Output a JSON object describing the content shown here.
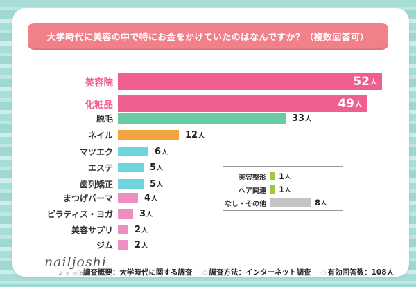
{
  "title": "大学時代に美容の中で特にお金をかけていたのはなんですか？（複数回答可）",
  "chart_data": {
    "type": "bar",
    "orientation": "horizontal",
    "unit": "人",
    "title": "大学時代に美容の中で特にお金をかけていたのはなんですか？（複数回答可）",
    "categories": [
      "美容院",
      "化粧品",
      "脱毛",
      "ネイル",
      "マツエク",
      "エステ",
      "歯列矯正",
      "まつげパーマ",
      "ピラティス・ヨガ",
      "美容サプリ",
      "ジム"
    ],
    "values": [
      52,
      49,
      33,
      12,
      6,
      5,
      5,
      4,
      3,
      2,
      2
    ],
    "bar_colors": [
      "#ee5f8d",
      "#ee5f8d",
      "#68cba4",
      "#f5a340",
      "#6fd4dd",
      "#6fd4dd",
      "#6fd4dd",
      "#ee8fc2",
      "#ee8fc2",
      "#ee8fc2",
      "#ee8fc2"
    ],
    "emphasized_rows": [
      0,
      1
    ],
    "value_labels": [
      "52人",
      "49人",
      "33人",
      "12人",
      "6人",
      "5人",
      "5人",
      "4人",
      "3人",
      "2人",
      "2人"
    ],
    "legend_position": "none",
    "grid": false,
    "inset_box": {
      "categories": [
        "美容整形",
        "ヘア関連",
        "なし・その他"
      ],
      "values": [
        1,
        1,
        8
      ],
      "bar_colors": [
        "#9bcb3c",
        "#9bcb3c",
        "#c4c4c4"
      ],
      "value_labels": [
        "1人",
        "1人",
        "8人"
      ]
    }
  },
  "footer": {
    "logo": "nailjoshi",
    "logo_sub": "ネイル女子",
    "note_prefix": "◇",
    "notes": [
      "調査概要：大学時代に関する調査",
      "調査方法：インターネット調査",
      "有効回答数：108人"
    ]
  },
  "colors": {
    "title_bg": "#f2808b",
    "title_text": "#ffffff",
    "emphasis_pink": "#ee5f8d",
    "teal_bar": "#68cba4",
    "orange_bar": "#f5a340",
    "skyblue_bar": "#6fd4dd",
    "rosepink_bar": "#ee8fc2",
    "green_bar": "#9bcb3c",
    "gray_bar": "#c4c4c4",
    "frame_aqua": "#a8ded8",
    "card_bg": "#ffffff",
    "inset_border": "#999999"
  }
}
